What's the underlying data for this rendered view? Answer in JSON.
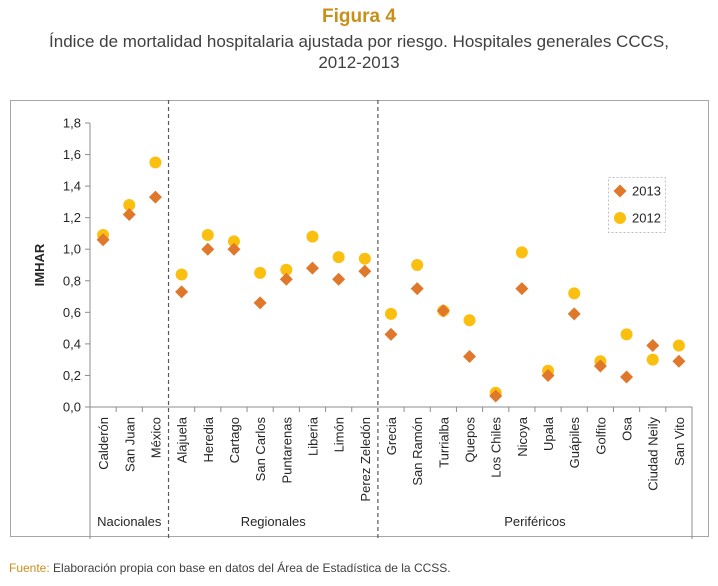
{
  "figure_label": "Figura 4",
  "title": "Índice de mortalidad hospitalaria ajustada por riesgo.  Hospitales generales CCCS,",
  "subtitle": "2012-2013",
  "source": {
    "label": "Fuente:",
    "text": " Elaboración propia con base en datos del Área de Estadística de la CCSS."
  },
  "chart_data": {
    "type": "scatter",
    "ylabel": "IMHAR",
    "xlabel": "",
    "ylim": [
      0,
      1.8
    ],
    "yticks": [
      "0,0",
      "0,2",
      "0,4",
      "0,6",
      "0,8",
      "1,0",
      "1,2",
      "1,4",
      "1,6",
      "1,8"
    ],
    "grid": false,
    "legend_position": "right",
    "categories": [
      "Calderón",
      "San Juan",
      "México",
      "Alajuela",
      "Heredia",
      "Cartago",
      "San Carlos",
      "Puntarenas",
      "Liberia",
      "Limón",
      "Perez Zeledón",
      "Grecia",
      "San Ramón",
      "Turrialba",
      "Quepos",
      "Los Chiles",
      "Nicoya",
      "Upala",
      "Guápiles",
      "Golfito",
      "Osa",
      "Ciudad Neily",
      "San Vito"
    ],
    "groups": [
      {
        "name": "Nacionales",
        "start": 0,
        "end": 2
      },
      {
        "name": "Regionales",
        "start": 3,
        "end": 10
      },
      {
        "name": "Periféricos",
        "start": 11,
        "end": 22
      }
    ],
    "series": [
      {
        "name": "2013",
        "marker": "diamond",
        "color": "#e0782c",
        "values": [
          1.06,
          1.22,
          1.33,
          0.73,
          1.0,
          1.0,
          0.66,
          0.81,
          0.88,
          0.81,
          0.86,
          0.46,
          0.75,
          0.61,
          0.32,
          0.07,
          0.75,
          0.2,
          0.59,
          0.26,
          0.19,
          0.39,
          0.29
        ]
      },
      {
        "name": "2012",
        "marker": "circle",
        "color": "#fbbf10",
        "values": [
          1.09,
          1.28,
          1.55,
          0.84,
          1.09,
          1.05,
          0.85,
          0.87,
          1.08,
          0.95,
          0.94,
          0.59,
          0.9,
          0.61,
          0.55,
          0.09,
          0.98,
          0.23,
          0.72,
          0.29,
          0.46,
          0.3,
          0.39
        ]
      }
    ]
  }
}
